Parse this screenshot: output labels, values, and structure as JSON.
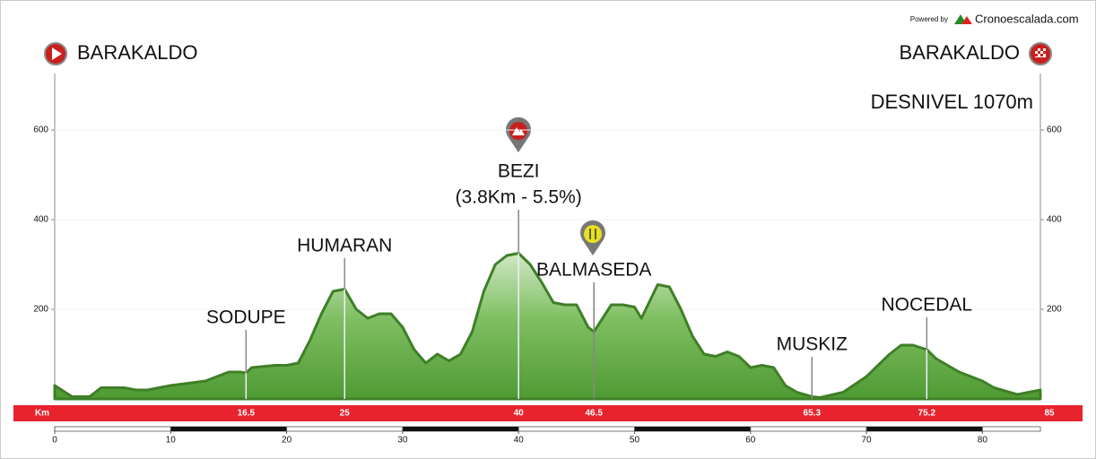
{
  "header": {
    "powered_by": "Powered by",
    "brand": "Cronoescalada.com",
    "start": "BARAKALDO",
    "finish": "BARAKALDO",
    "desnivel": "DESNIVEL 1070m"
  },
  "chart_data": {
    "type": "area",
    "color": "#3f7f27",
    "x": [
      0,
      1.5,
      3,
      4,
      6,
      7,
      8,
      10,
      13,
      15,
      16,
      16.5,
      17,
      19,
      20,
      21,
      22,
      23,
      24,
      25,
      26,
      27,
      28,
      29,
      30,
      31,
      32,
      33,
      34,
      35,
      36,
      37,
      38,
      39,
      40,
      41,
      42,
      43,
      44,
      45,
      46,
      46.5,
      47,
      48,
      49,
      50,
      50.6,
      52,
      53,
      54,
      55,
      56,
      57,
      58,
      59,
      60,
      61,
      62,
      63,
      64,
      65.3,
      66,
      68,
      70,
      72,
      73,
      74,
      75.2,
      76,
      78,
      80,
      81,
      83,
      84,
      85
    ],
    "values": [
      30,
      5,
      5,
      25,
      25,
      20,
      20,
      30,
      40,
      60,
      60,
      58,
      70,
      75,
      75,
      80,
      130,
      190,
      240,
      245,
      200,
      180,
      190,
      190,
      160,
      110,
      80,
      100,
      85,
      100,
      150,
      240,
      300,
      320,
      325,
      300,
      260,
      215,
      210,
      210,
      160,
      150,
      170,
      210,
      210,
      205,
      180,
      255,
      250,
      200,
      140,
      100,
      95,
      105,
      95,
      70,
      75,
      70,
      30,
      15,
      5,
      3,
      15,
      50,
      100,
      120,
      120,
      110,
      90,
      60,
      40,
      25,
      10,
      15,
      20
    ],
    "xlim": [
      0,
      85
    ],
    "ylim": [
      0,
      726
    ],
    "yticks": [
      200,
      400,
      600
    ],
    "xticks": [
      0,
      10,
      20,
      30,
      40,
      50,
      60,
      70,
      80
    ],
    "km_label": "Km",
    "end_km": 85,
    "annotations": [
      {
        "km": 16.5,
        "label": "SODUPE"
      },
      {
        "km": 25,
        "label": "HUMARAN"
      },
      {
        "km": 40,
        "label": "BEZI",
        "sublabel": "(3.8Km - 5.5%)"
      },
      {
        "km": 46.5,
        "label": "BALMASEDA"
      },
      {
        "km": 65.3,
        "label": "MUSKIZ"
      },
      {
        "km": 75.2,
        "label": "NOCEDAL"
      }
    ]
  }
}
